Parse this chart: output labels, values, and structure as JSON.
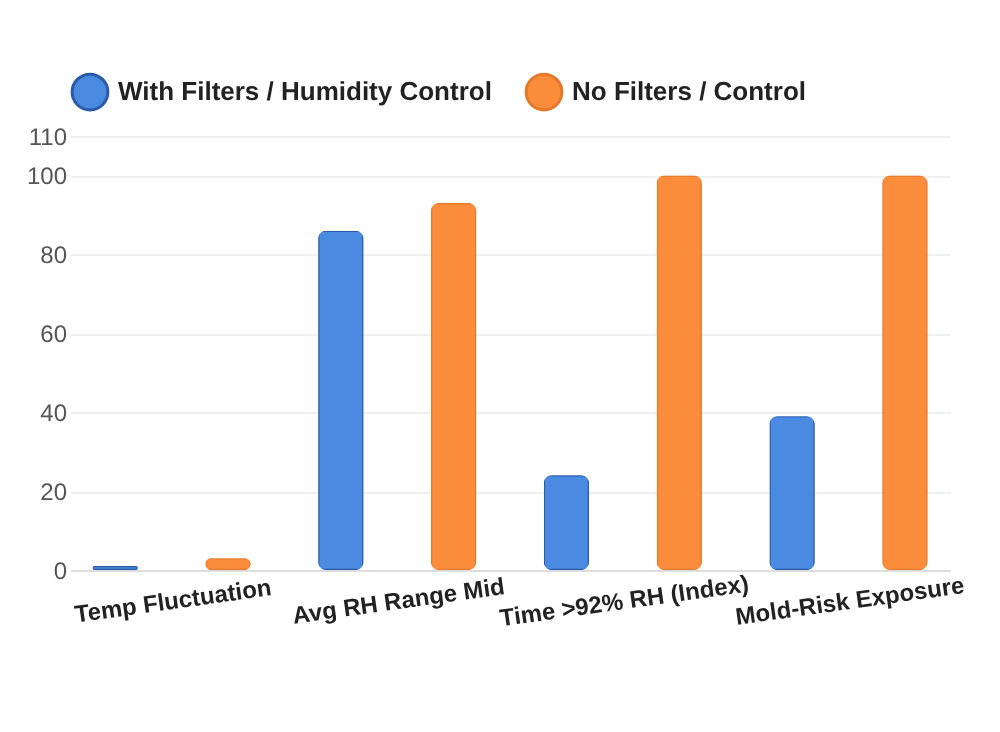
{
  "chart_data": {
    "type": "bar",
    "categories": [
      "Temp Fluctuation",
      "Avg RH Range Mid",
      "Time >92% RH (Index)",
      "Mold-Risk Exposure"
    ],
    "series": [
      {
        "name": "With Filters / Humidity Control",
        "color": "#4a8ae0",
        "values": [
          1,
          86,
          24,
          39
        ]
      },
      {
        "name": "No Filters / Control",
        "color": "#fb8c3c",
        "values": [
          3,
          93,
          100,
          100
        ]
      }
    ],
    "ylim": [
      0,
      110
    ],
    "yticks": [
      0,
      20,
      40,
      60,
      80,
      100,
      110
    ],
    "grid": true,
    "legend": "top",
    "marker": "circle"
  }
}
